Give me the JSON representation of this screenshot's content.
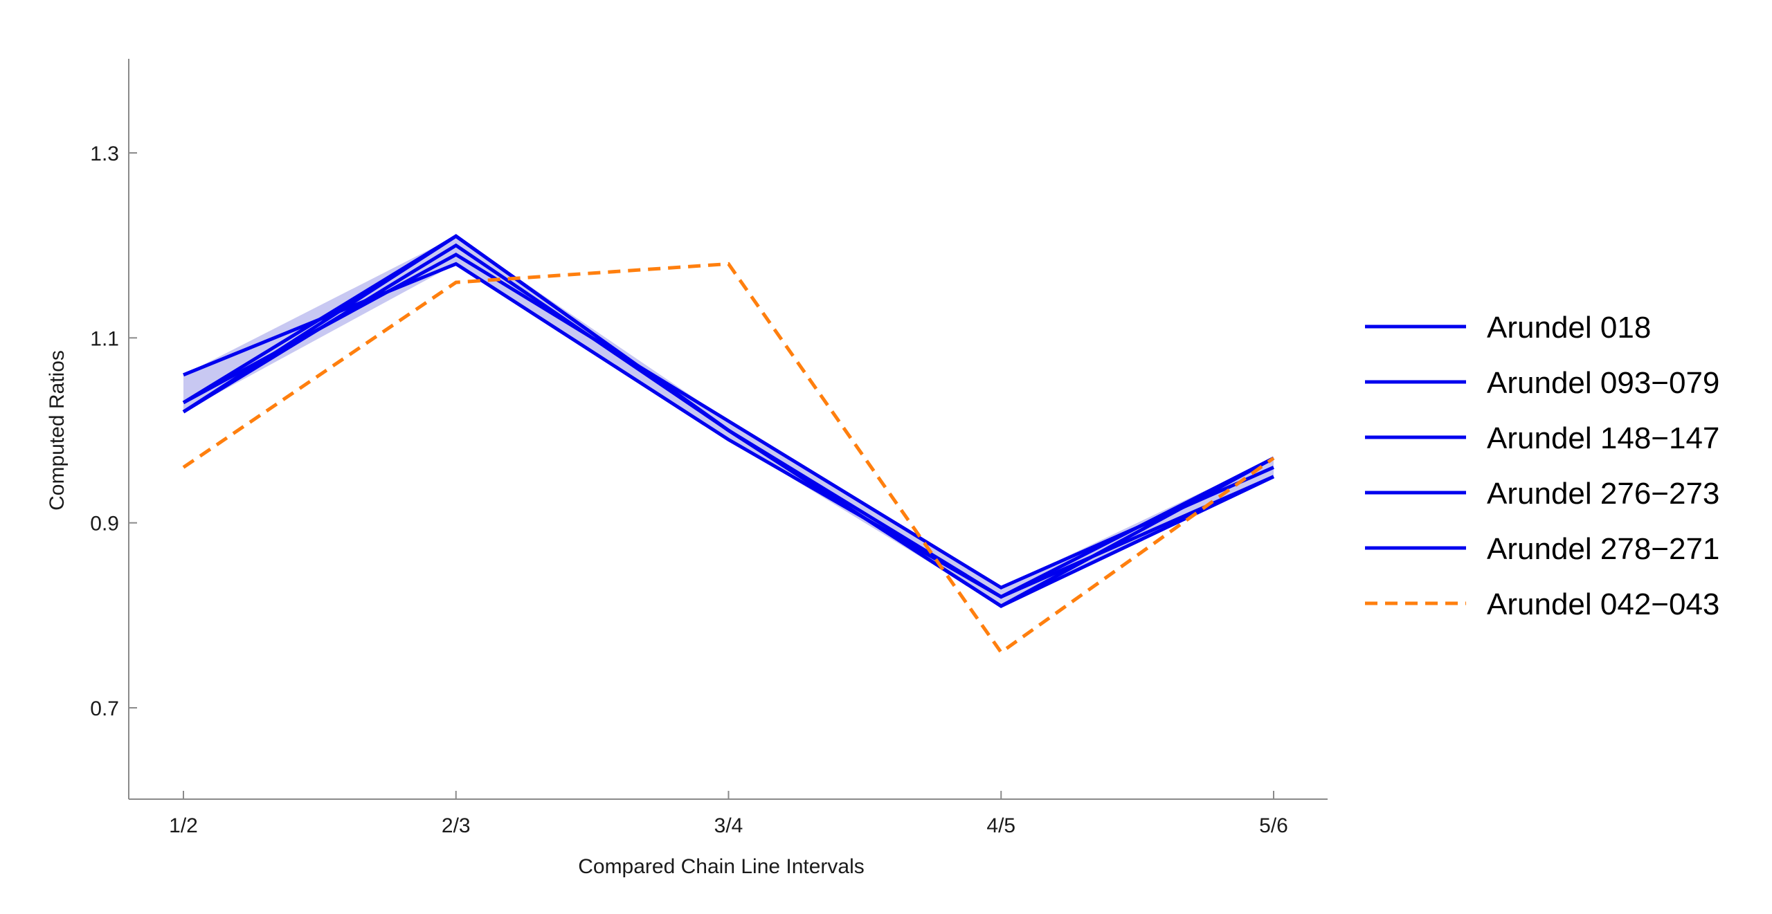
{
  "chart_data": {
    "type": "line",
    "xlabel": "Compared Chain Line Intervals",
    "ylabel": "Computed Ratios",
    "categories": [
      "1/2",
      "2/3",
      "3/4",
      "4/5",
      "5/6"
    ],
    "ylim": [
      0.6,
      1.4
    ],
    "yticks": [
      "0.7",
      "0.9",
      "1.1",
      "1.3"
    ],
    "grid": false,
    "legend_position": "right",
    "band": {
      "series_color": "#0000ee",
      "fill_color": "#c8c8f2",
      "lower": [
        1.02,
        1.18,
        0.99,
        0.81,
        0.95
      ],
      "upper": [
        1.06,
        1.21,
        1.01,
        0.83,
        0.97
      ]
    },
    "series": [
      {
        "name": "Arundel 018",
        "values": [
          1.02,
          1.21,
          1.0,
          0.81,
          0.95
        ],
        "color": "#0000ee",
        "style": "solid"
      },
      {
        "name": "Arundel 093−079",
        "values": [
          1.06,
          1.18,
          0.99,
          0.82,
          0.97
        ],
        "color": "#0000ee",
        "style": "solid"
      },
      {
        "name": "Arundel 148−147",
        "values": [
          1.03,
          1.19,
          1.01,
          0.83,
          0.96
        ],
        "color": "#0000ee",
        "style": "solid"
      },
      {
        "name": "Arundel 276−273",
        "values": [
          1.02,
          1.2,
          1.0,
          0.81,
          0.97
        ],
        "color": "#0000ee",
        "style": "solid"
      },
      {
        "name": "Arundel 278−271",
        "values": [
          1.03,
          1.21,
          1.0,
          0.82,
          0.95
        ],
        "color": "#0000ee",
        "style": "solid"
      },
      {
        "name": "Arundel 042−043",
        "values": [
          0.96,
          1.16,
          1.18,
          0.76,
          0.97
        ],
        "color": "#ff7f0e",
        "style": "dashed"
      }
    ]
  }
}
